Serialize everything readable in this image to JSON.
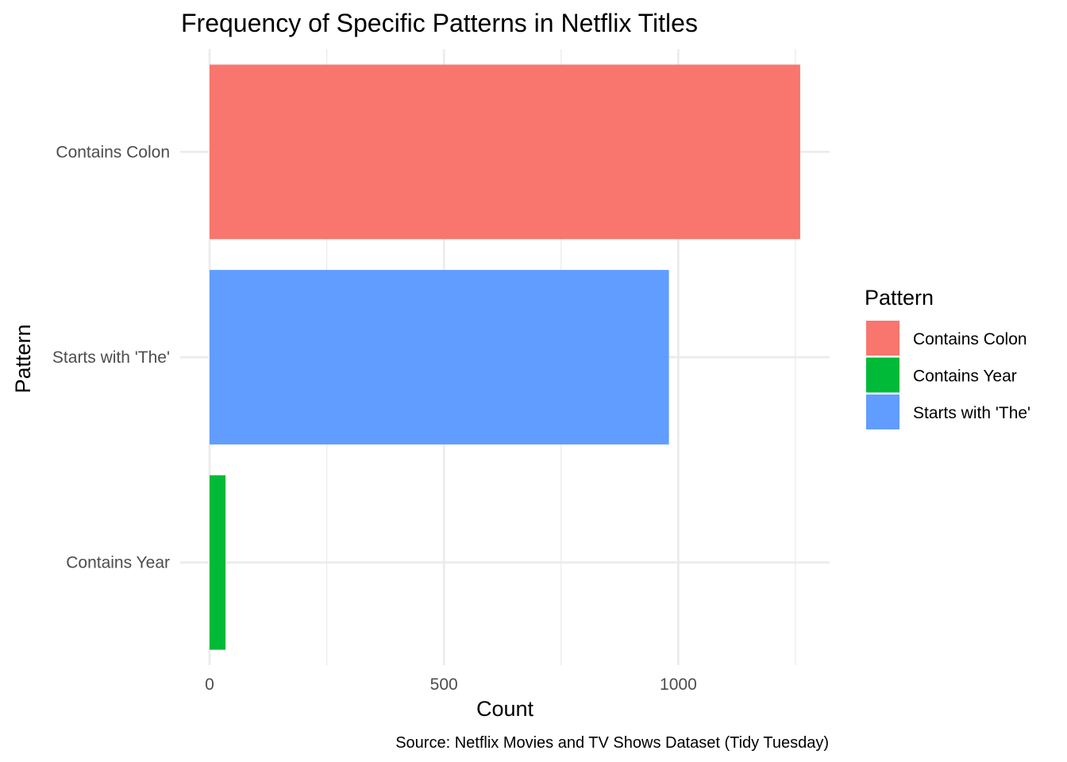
{
  "chart_data": {
    "type": "bar",
    "orientation": "horizontal",
    "title": "Frequency of Specific Patterns in Netflix Titles",
    "xlabel": "Count",
    "ylabel": "Pattern",
    "caption": "Source: Netflix Movies and TV Shows Dataset (Tidy Tuesday)",
    "categories": [
      "Contains Colon",
      "Starts with 'The'",
      "Contains Year"
    ],
    "values": [
      1260,
      980,
      34
    ],
    "colors": [
      "#F8766D",
      "#619CFF",
      "#00BA38"
    ],
    "xlim": [
      0,
      1330
    ],
    "xticks": [
      0,
      500,
      1000
    ],
    "xtick_labels": [
      "0",
      "500",
      "1000"
    ],
    "grid": true,
    "legend": {
      "title": "Pattern",
      "position": "right",
      "entries": [
        {
          "label": "Contains Colon",
          "color": "#F8766D"
        },
        {
          "label": "Contains Year",
          "color": "#00BA38"
        },
        {
          "label": "Starts with 'The'",
          "color": "#619CFF"
        }
      ]
    }
  }
}
